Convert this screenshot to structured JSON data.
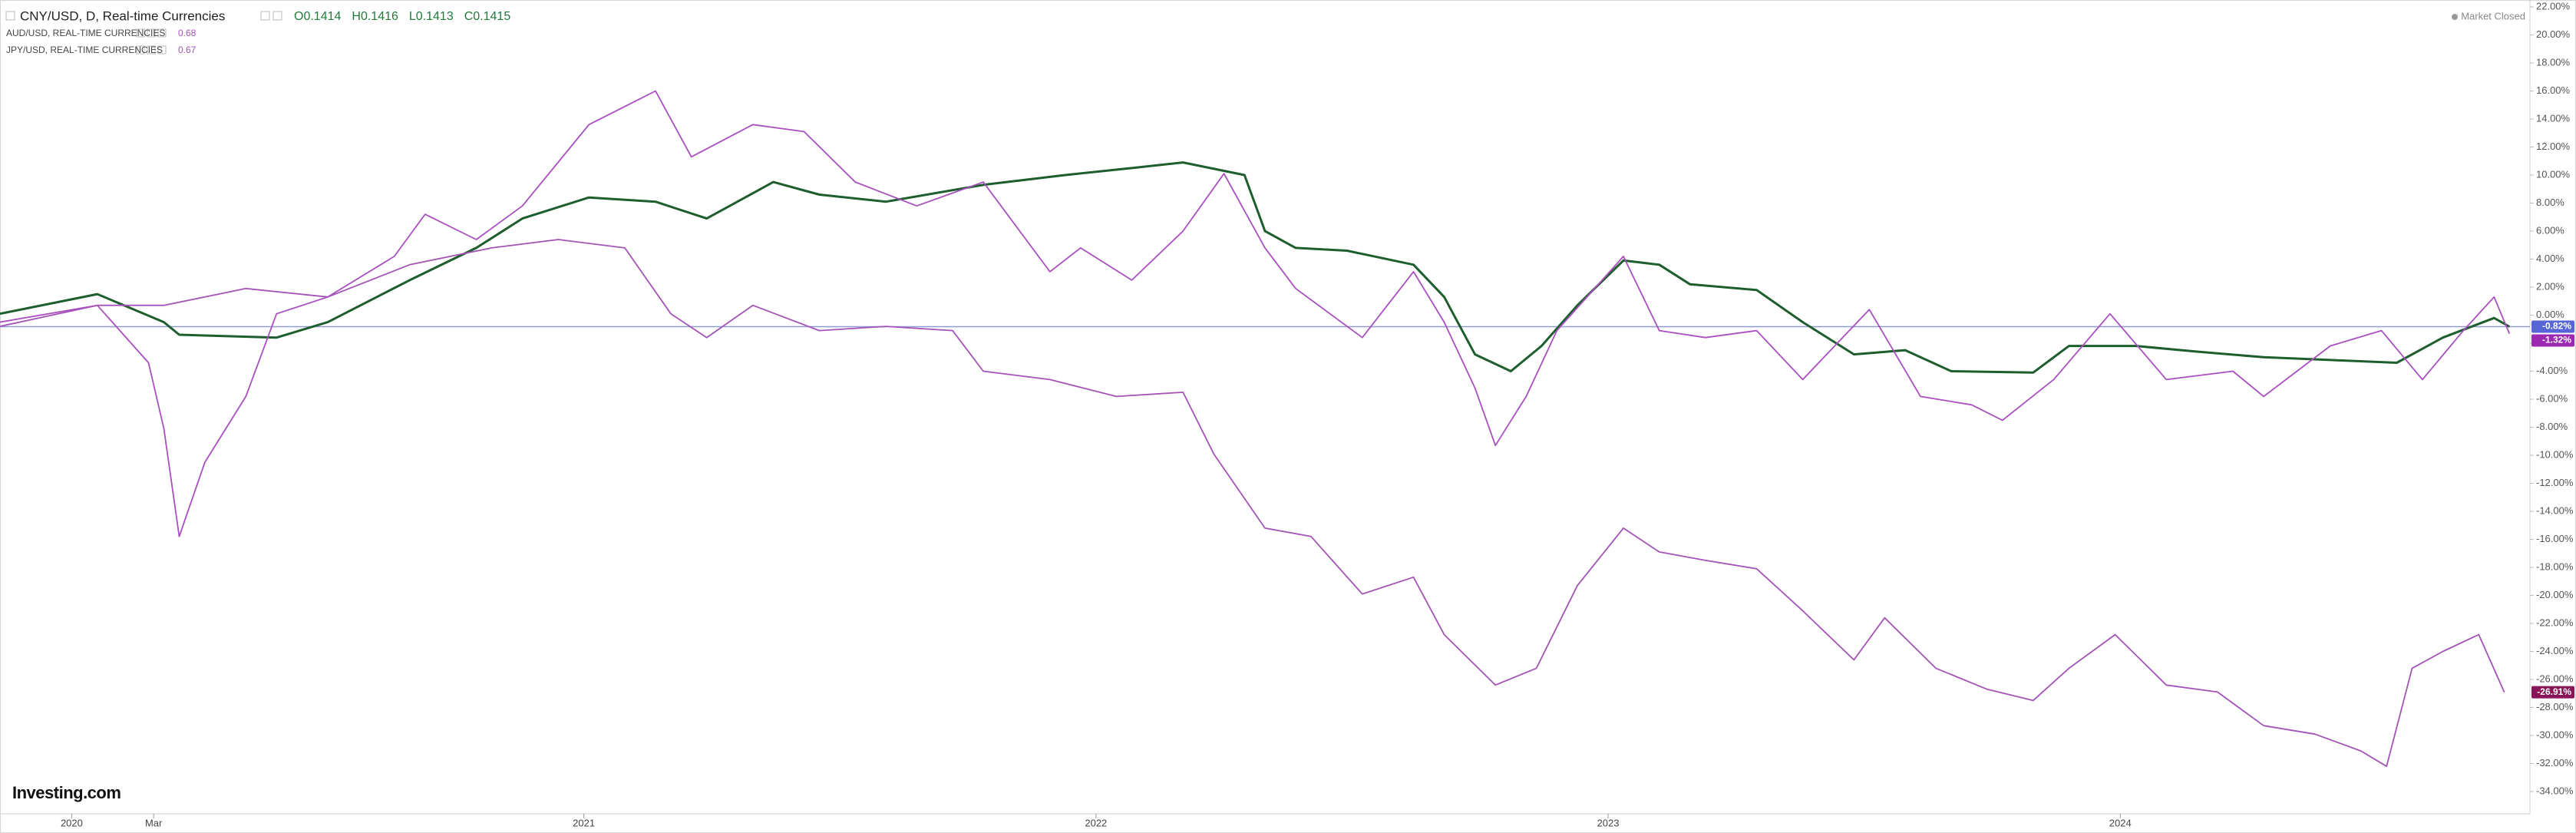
{
  "chart_data": {
    "type": "line",
    "status": "Market Closed",
    "logo": "Investing.com",
    "xlim": [
      2019.86,
      2024.8
    ],
    "xticks": [
      2020,
      {
        "value": 2020.16,
        "label": "Mar"
      },
      2021,
      2022,
      2023,
      2024
    ],
    "ylim": [
      -34,
      22
    ],
    "yticks": [
      {
        "value": 22,
        "label": "22.00%"
      },
      {
        "value": 20,
        "label": "20.00%"
      },
      {
        "value": 18,
        "label": "18.00%"
      },
      {
        "value": 16,
        "label": "16.00%"
      },
      {
        "value": 14,
        "label": "14.00%"
      },
      {
        "value": 12,
        "label": "12.00%"
      },
      {
        "value": 10,
        "label": "10.00%"
      },
      {
        "value": 8,
        "label": "8.00%"
      },
      {
        "value": 6,
        "label": "6.00%"
      },
      {
        "value": 4,
        "label": "4.00%"
      },
      {
        "value": 2,
        "label": "2.00%"
      },
      {
        "value": 0,
        "label": "0.00%"
      },
      {
        "value": -2,
        "label": "-2.00%"
      },
      {
        "value": -4,
        "label": "-4.00%"
      },
      {
        "value": -6,
        "label": "-6.00%"
      },
      {
        "value": -8,
        "label": "-8.00%"
      },
      {
        "value": -10,
        "label": "-10.00%"
      },
      {
        "value": -12,
        "label": "-12.00%"
      },
      {
        "value": -14,
        "label": "-14.00%"
      },
      {
        "value": -16,
        "label": "-16.00%"
      },
      {
        "value": -18,
        "label": "-18.00%"
      },
      {
        "value": -20,
        "label": "-20.00%"
      },
      {
        "value": -22,
        "label": "-22.00%"
      },
      {
        "value": -24,
        "label": "-24.00%"
      },
      {
        "value": -26,
        "label": "-26.00%"
      },
      {
        "value": -28,
        "label": "-28.00%"
      },
      {
        "value": -30,
        "label": "-30.00%"
      },
      {
        "value": -32,
        "label": "-32.00%"
      },
      {
        "value": -34,
        "label": "-34.00%"
      }
    ],
    "price_line_color": "#8f9cd8",
    "series": [
      {
        "name": "CNY/USD, D, Real-time Currencies",
        "color": "#1e5e2e",
        "quote": [
          "O0.1414",
          "H0.1416",
          "L0.1413",
          "C0.1415"
        ],
        "last": {
          "value": -0.82,
          "label": "-0.82%"
        },
        "tag_color": "#5865d8",
        "x": [
          2019.86,
          2020.05,
          2020.18,
          2020.21,
          2020.4,
          2020.5,
          2020.66,
          2020.79,
          2020.88,
          2021.01,
          2021.14,
          2021.24,
          2021.37,
          2021.46,
          2021.59,
          2021.78,
          2021.94,
          2022.07,
          2022.17,
          2022.29,
          2022.33,
          2022.39,
          2022.49,
          2022.62,
          2022.68,
          2022.74,
          2022.81,
          2022.87,
          2022.94,
          2023.03,
          2023.1,
          2023.16,
          2023.29,
          2023.38,
          2023.48,
          2023.58,
          2023.67,
          2023.83,
          2023.9,
          2024.03,
          2024.15,
          2024.28,
          2024.41,
          2024.54,
          2024.63,
          2024.73,
          2024.76
        ],
        "values": [
          0.1,
          1.5,
          -0.5,
          -1.4,
          -1.6,
          -0.5,
          2.5,
          4.8,
          6.9,
          8.4,
          8.1,
          6.9,
          9.5,
          8.6,
          8.1,
          9.3,
          10.0,
          10.5,
          10.9,
          10.0,
          6.0,
          4.8,
          4.6,
          3.6,
          1.3,
          -2.8,
          -4.0,
          -2.2,
          0.7,
          3.9,
          3.6,
          2.2,
          1.8,
          -0.5,
          -2.8,
          -2.5,
          -4.0,
          -4.1,
          -2.2,
          -2.2,
          -2.6,
          -3.0,
          -3.2,
          -3.4,
          -1.6,
          -0.2,
          -0.82
        ]
      },
      {
        "name": "AUD/USD, REAL-TIME CURRENCIES",
        "color": "#a94fc0",
        "price": 0.68,
        "last": {
          "value": -1.32,
          "label": "-1.32%"
        },
        "tag_color": "#9c27b0",
        "x": [
          2019.86,
          2020.05,
          2020.15,
          2020.18,
          2020.21,
          2020.26,
          2020.34,
          2020.4,
          2020.5,
          2020.63,
          2020.69,
          2020.79,
          2020.88,
          2021.01,
          2021.14,
          2021.21,
          2021.33,
          2021.43,
          2021.53,
          2021.65,
          2021.78,
          2021.91,
          2021.97,
          2022.07,
          2022.17,
          2022.25,
          2022.33,
          2022.39,
          2022.52,
          2022.62,
          2022.68,
          2022.74,
          2022.78,
          2022.84,
          2022.9,
          2023.03,
          2023.1,
          2023.19,
          2023.29,
          2023.38,
          2023.51,
          2023.61,
          2023.71,
          2023.77,
          2023.87,
          2023.98,
          2024.09,
          2024.22,
          2024.28,
          2024.41,
          2024.51,
          2024.59,
          2024.67,
          2024.73,
          2024.76
        ],
        "values": [
          -0.5,
          0.7,
          -3.4,
          -8.1,
          -15.8,
          -10.5,
          -5.8,
          0.1,
          1.3,
          4.2,
          7.2,
          5.4,
          7.8,
          13.6,
          16.0,
          11.3,
          13.6,
          13.1,
          9.5,
          7.8,
          9.5,
          3.1,
          4.8,
          2.5,
          6.0,
          10.1,
          4.8,
          1.9,
          -1.6,
          3.1,
          -0.5,
          -5.2,
          -9.3,
          -5.8,
          -1.1,
          4.2,
          -1.1,
          -1.6,
          -1.1,
          -4.6,
          0.4,
          -5.8,
          -6.4,
          -7.5,
          -4.6,
          0.1,
          -4.6,
          -4.0,
          -5.8,
          -2.2,
          -1.1,
          -4.6,
          -1.1,
          1.3,
          -1.32
        ]
      },
      {
        "name": "JPY/USD, REAL-TIME CURRENCIES",
        "color": "#a354b6",
        "price": 0.67,
        "last": {
          "value": -26.91,
          "label": "-26.91%"
        },
        "tag_color": "#8a1458",
        "x": [
          2019.86,
          2020.05,
          2020.18,
          2020.34,
          2020.5,
          2020.66,
          2020.82,
          2020.95,
          2021.08,
          2021.17,
          2021.24,
          2021.33,
          2021.46,
          2021.59,
          2021.72,
          2021.78,
          2021.91,
          2022.04,
          2022.17,
          2022.23,
          2022.33,
          2022.42,
          2022.52,
          2022.62,
          2022.68,
          2022.78,
          2022.86,
          2022.94,
          2023.03,
          2023.1,
          2023.19,
          2023.29,
          2023.38,
          2023.48,
          2023.54,
          2023.64,
          2023.74,
          2023.83,
          2023.9,
          2023.99,
          2024.09,
          2024.19,
          2024.28,
          2024.38,
          2024.47,
          2024.52,
          2024.57,
          2024.63,
          2024.7,
          2024.75
        ],
        "values": [
          -0.8,
          0.7,
          0.7,
          1.9,
          1.3,
          3.6,
          4.8,
          5.4,
          4.8,
          0.1,
          -1.6,
          0.7,
          -1.1,
          -0.8,
          -1.1,
          -4.0,
          -4.6,
          -5.8,
          -5.5,
          -9.9,
          -15.2,
          -15.8,
          -19.9,
          -18.7,
          -22.8,
          -26.4,
          -25.2,
          -19.3,
          -15.2,
          -16.9,
          -17.5,
          -18.1,
          -21.1,
          -24.6,
          -21.6,
          -25.2,
          -26.7,
          -27.5,
          -25.2,
          -22.8,
          -26.4,
          -26.9,
          -29.3,
          -29.9,
          -31.1,
          -32.2,
          -25.2,
          -24.0,
          -22.8,
          -26.91
        ]
      }
    ]
  }
}
